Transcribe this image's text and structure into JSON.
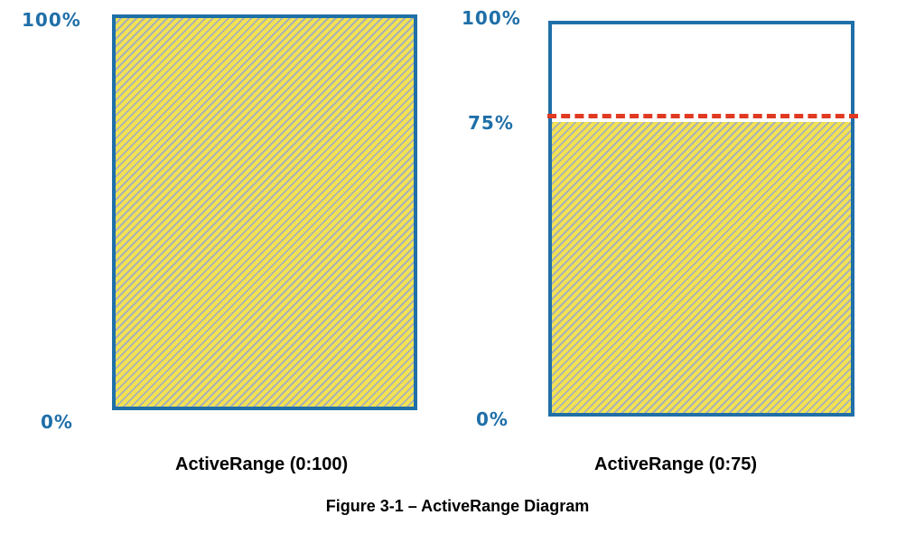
{
  "diagram": {
    "left": {
      "top_label": "100%",
      "bottom_label": "0%",
      "caption": "ActiveRange (0:100)",
      "fill_fraction": 1.0
    },
    "right": {
      "top_label": "100%",
      "mid_label": "75%",
      "bottom_label": "0%",
      "caption": "ActiveRange (0:75)",
      "fill_fraction": 0.75
    },
    "figure_caption": "Figure 3-1 – ActiveRange Diagram"
  },
  "colors": {
    "border": "#1f6fa8",
    "fill": "#f2e253",
    "hatch": "#a9b0b8",
    "threshold_line": "#e03a22"
  }
}
